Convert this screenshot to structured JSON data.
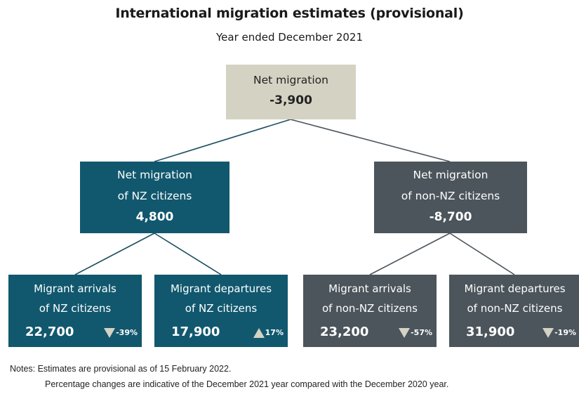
{
  "title": "International migration estimates (provisional)",
  "subtitle": "Year ended December 2021",
  "root": {
    "line1": "Net migration",
    "value": "-3,900"
  },
  "nz": {
    "line1": "Net migration",
    "line2": "of NZ citizens",
    "value": "4,800"
  },
  "non_nz": {
    "line1": "Net migration",
    "line2": "of non-NZ citizens",
    "value": "-8,700"
  },
  "leaves": [
    {
      "line1": "Migrant arrivals",
      "line2": "of NZ citizens",
      "value": "22,700",
      "change": "-39%",
      "direction": "down"
    },
    {
      "line1": "Migrant departures",
      "line2": "of NZ citizens",
      "value": "17,900",
      "change": "17%",
      "direction": "up"
    },
    {
      "line1": "Migrant arrivals",
      "line2": "of non-NZ citizens",
      "value": "23,200",
      "change": "-57%",
      "direction": "down"
    },
    {
      "line1": "Migrant departures",
      "line2": "of non-NZ citizens",
      "value": "31,900",
      "change": "-19%",
      "direction": "down"
    }
  ],
  "notes": {
    "line1": "Notes: Estimates are provisional as of 15 February 2022.",
    "line2": "Percentage changes are indicative of the December 2021 year compared with the December 2020 year."
  },
  "colors": {
    "root_fill": "#d4d2c3",
    "nz_fill": "#11586e",
    "non_nz_fill": "#4b555b",
    "arrow_fill": "#d4d2c3"
  }
}
